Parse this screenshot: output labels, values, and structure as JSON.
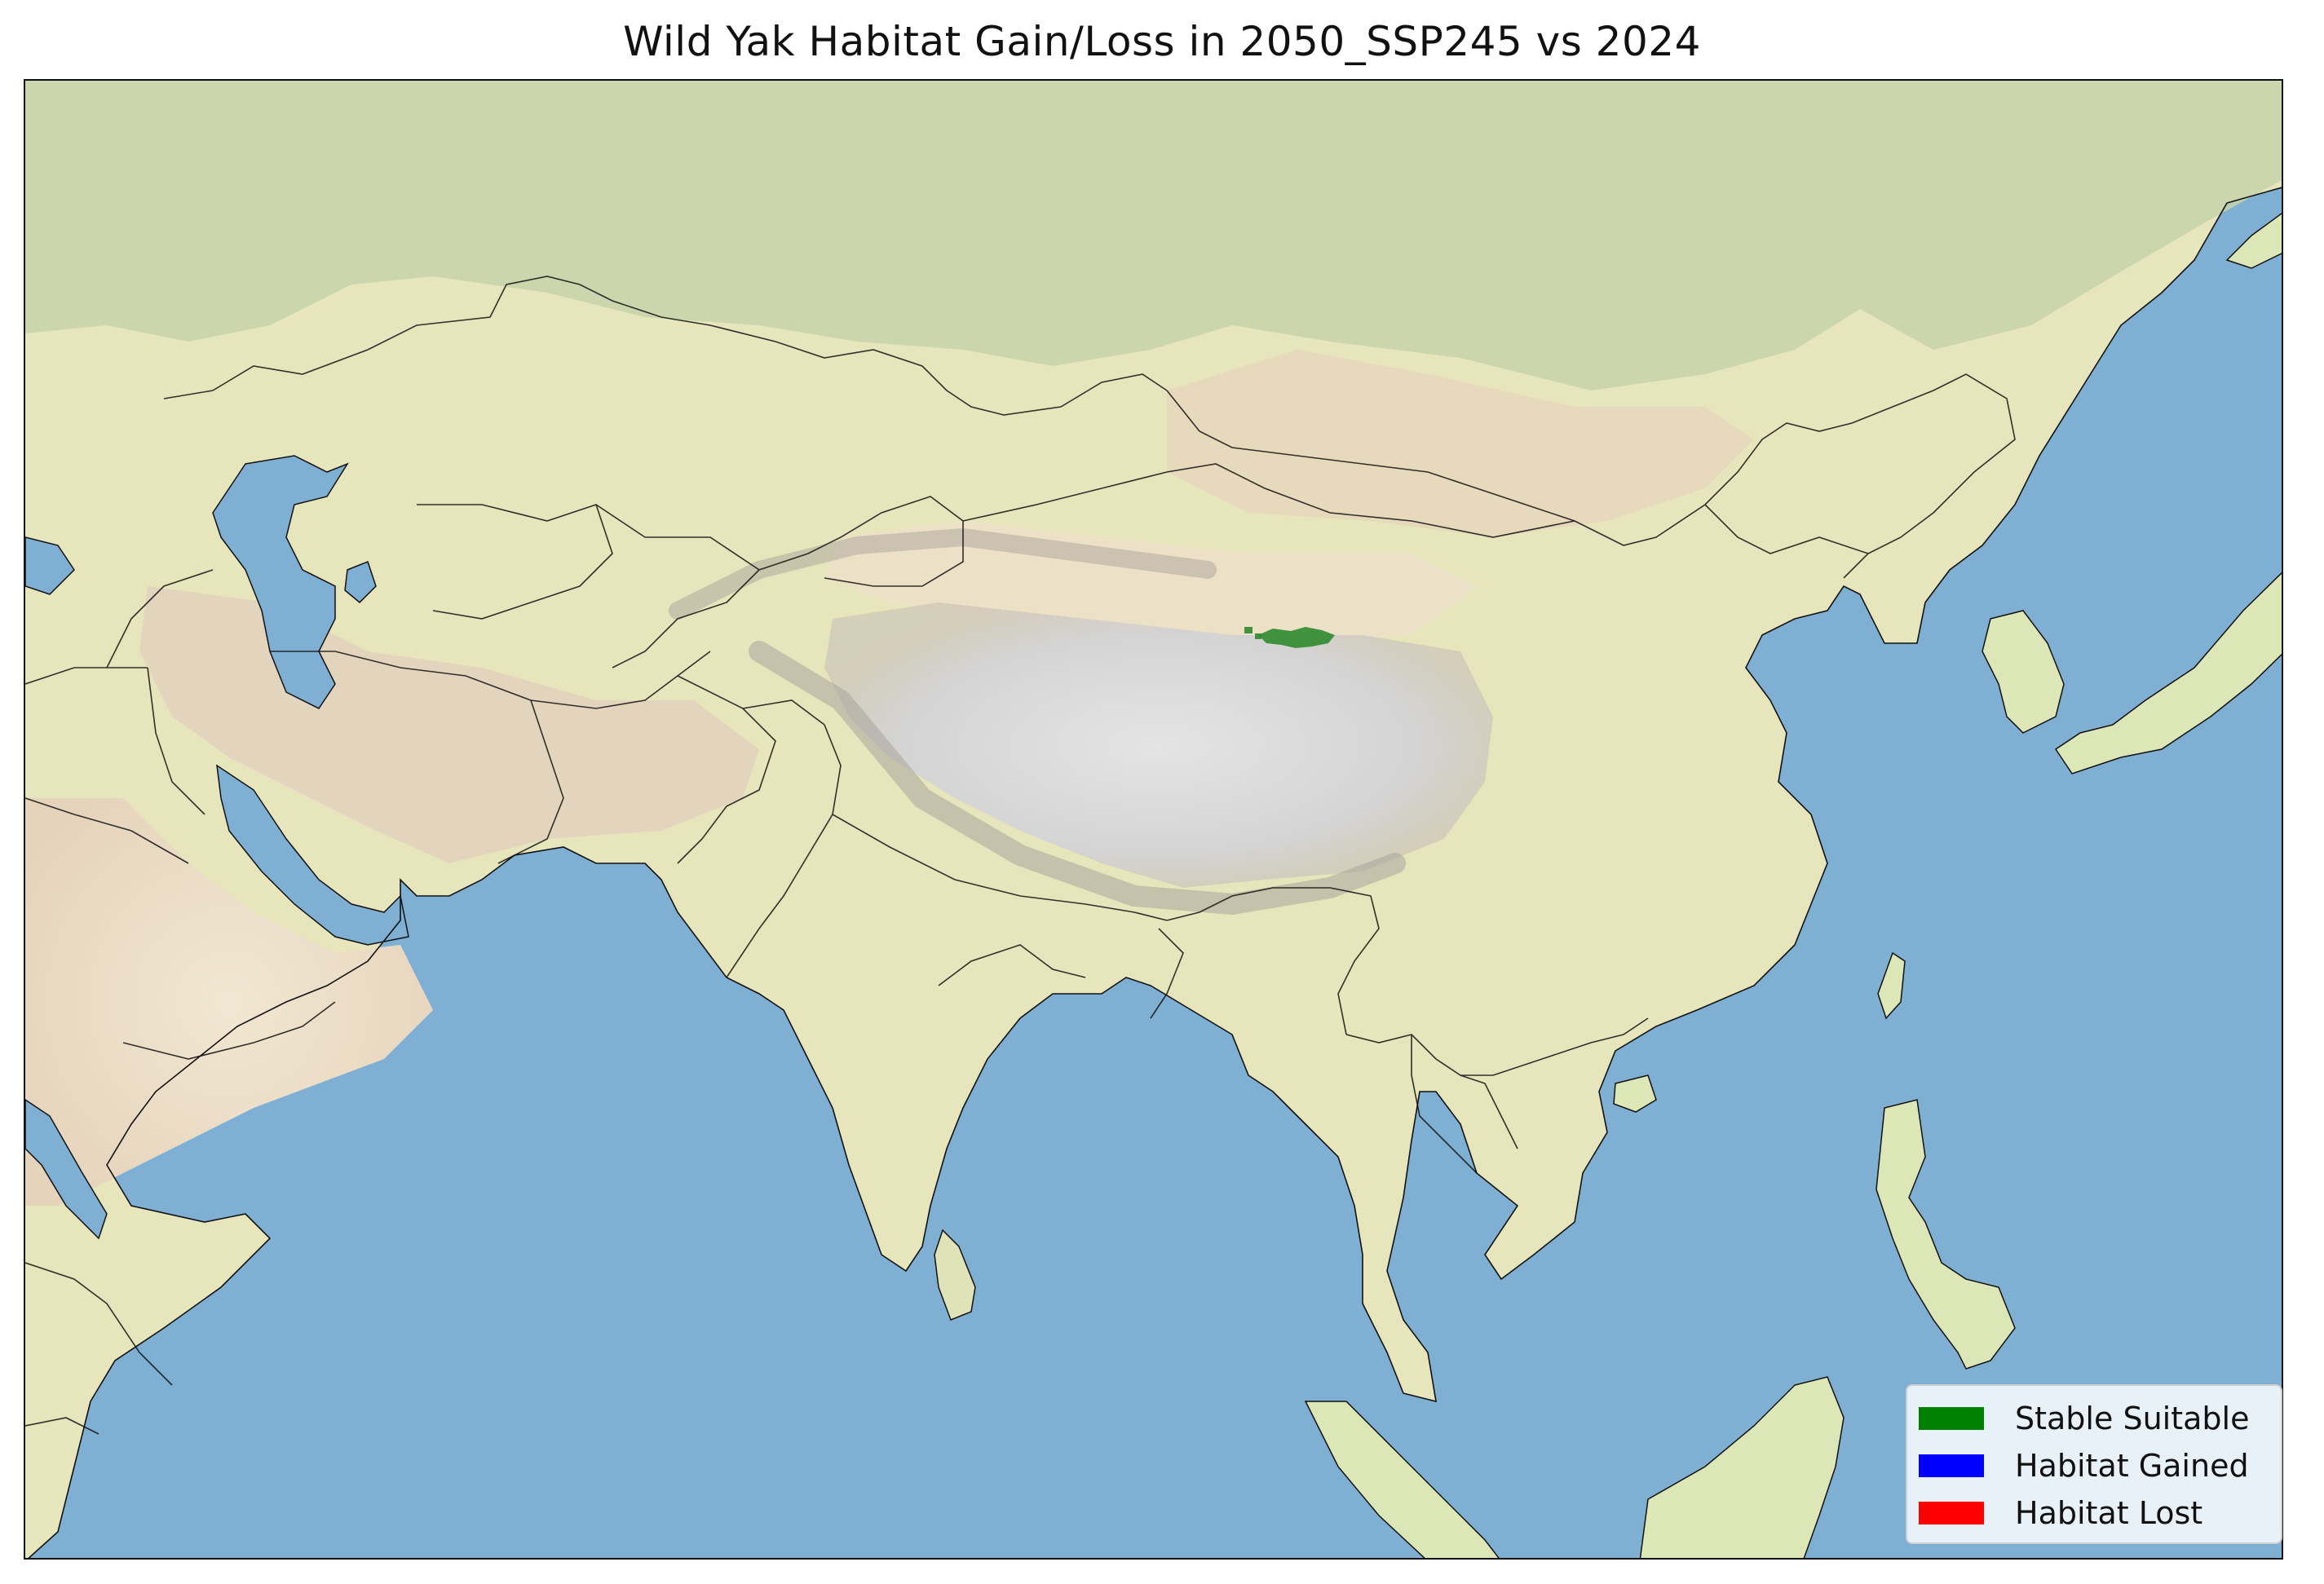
{
  "title": "Wild Yak Habitat Gain/Loss in 2050_SSP245 vs 2024",
  "legend": {
    "items": [
      {
        "label": "Stable Suitable",
        "color": "#008000"
      },
      {
        "label": "Habitat Gained",
        "color": "#0000ff"
      },
      {
        "label": "Habitat Lost",
        "color": "#ff0000"
      }
    ]
  },
  "map": {
    "ocean_color": "#7fb0d4",
    "land_color": "#e8e6bc",
    "mountain_color": "#d8d8d8",
    "steppe_color": "#c4d3a8",
    "border_color": "#111111"
  }
}
